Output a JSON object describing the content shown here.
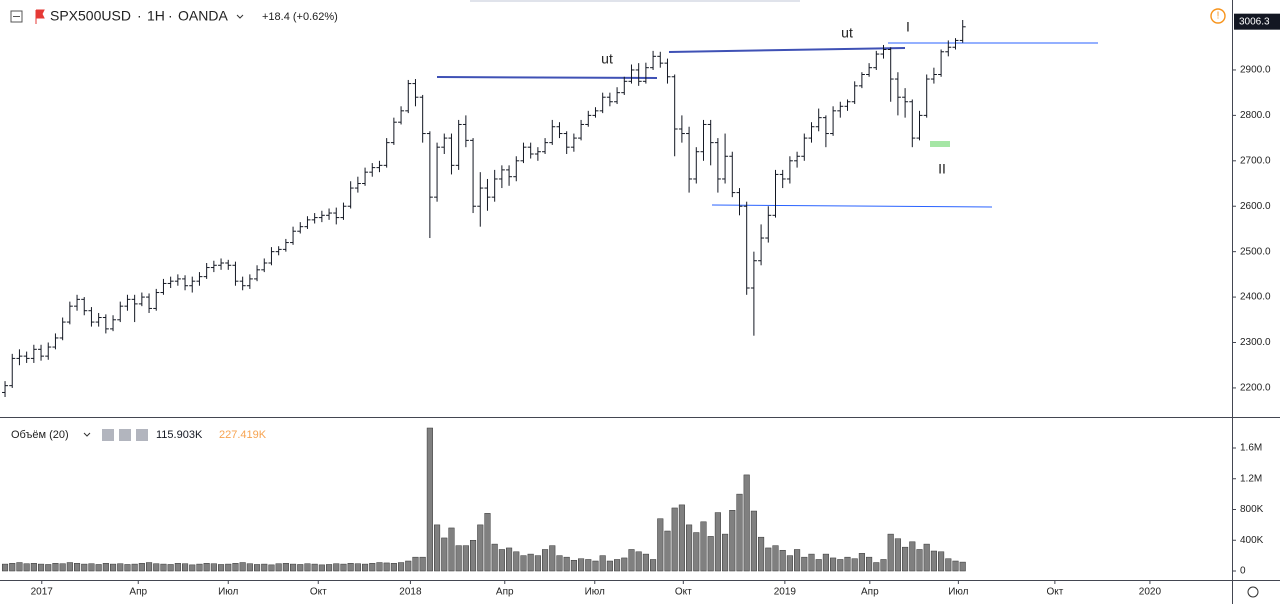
{
  "chart_data": [
    {
      "type": "ohlc",
      "title": "SPX500USD",
      "interval": "1H",
      "exchange": "OANDA",
      "change": "+18.4 (+0.62%)",
      "last": 3006.3,
      "annotations": [
        "ut",
        "ut",
        "I",
        "II"
      ],
      "open": [
        2190,
        2205,
        2265,
        2270,
        2265,
        2285,
        2270,
        2290,
        2310,
        2345,
        2380,
        2395,
        2370,
        2345,
        2355,
        2330,
        2350,
        2380,
        2395,
        2385,
        2400,
        2375,
        2410,
        2430,
        2435,
        2440,
        2425,
        2435,
        2445,
        2465,
        2470,
        2475,
        2470,
        2435,
        2425,
        2440,
        2460,
        2475,
        2500,
        2505,
        2520,
        2545,
        2555,
        2570,
        2575,
        2580,
        2585,
        2575,
        2600,
        2640,
        2650,
        2675,
        2685,
        2690,
        2740,
        2785,
        2810,
        2870,
        2840,
        2760,
        2620,
        2730,
        2750,
        2690,
        2780,
        2745,
        2600,
        2640,
        2620,
        2660,
        2680,
        2665,
        2700,
        2730,
        2715,
        2720,
        2740,
        2775,
        2760,
        2730,
        2750,
        2780,
        2800,
        2810,
        2840,
        2830,
        2850,
        2875,
        2900,
        2875,
        2905,
        2930,
        2915,
        2885,
        2770,
        2760,
        2660,
        2720,
        2780,
        2740,
        2660,
        2710,
        2630,
        2600,
        2420,
        2480,
        2530,
        2580,
        2670,
        2660,
        2700,
        2710,
        2750,
        2775,
        2795,
        2760,
        2810,
        2820,
        2830,
        2865,
        2890,
        2905,
        2935,
        2945,
        2880,
        2840,
        2830,
        2750,
        2800,
        2880,
        2890,
        2940,
        2950,
        2965
      ],
      "high": [
        2215,
        2275,
        2285,
        2280,
        2295,
        2295,
        2300,
        2320,
        2355,
        2390,
        2405,
        2400,
        2378,
        2365,
        2362,
        2360,
        2390,
        2405,
        2405,
        2410,
        2408,
        2418,
        2440,
        2445,
        2450,
        2448,
        2445,
        2455,
        2475,
        2480,
        2485,
        2482,
        2478,
        2445,
        2450,
        2470,
        2485,
        2510,
        2512,
        2528,
        2555,
        2565,
        2578,
        2585,
        2590,
        2595,
        2597,
        2608,
        2655,
        2665,
        2685,
        2695,
        2700,
        2750,
        2795,
        2820,
        2878,
        2880,
        2845,
        2765,
        2740,
        2760,
        2760,
        2790,
        2800,
        2750,
        2675,
        2660,
        2680,
        2690,
        2690,
        2710,
        2740,
        2740,
        2730,
        2750,
        2790,
        2785,
        2765,
        2760,
        2790,
        2810,
        2818,
        2850,
        2850,
        2862,
        2885,
        2912,
        2915,
        2916,
        2942,
        2940,
        2925,
        2890,
        2800,
        2775,
        2730,
        2790,
        2790,
        2750,
        2760,
        2720,
        2640,
        2610,
        2500,
        2560,
        2600,
        2680,
        2680,
        2710,
        2720,
        2760,
        2785,
        2815,
        2800,
        2820,
        2830,
        2835,
        2875,
        2895,
        2915,
        2942,
        2955,
        2950,
        2895,
        2860,
        2835,
        2810,
        2890,
        2905,
        2945,
        2965,
        2970,
        3010
      ],
      "low": [
        2180,
        2200,
        2250,
        2255,
        2255,
        2260,
        2262,
        2285,
        2305,
        2340,
        2370,
        2360,
        2335,
        2335,
        2320,
        2325,
        2345,
        2370,
        2345,
        2380,
        2365,
        2370,
        2405,
        2420,
        2425,
        2415,
        2410,
        2425,
        2440,
        2455,
        2460,
        2460,
        2425,
        2415,
        2418,
        2435,
        2455,
        2470,
        2492,
        2500,
        2515,
        2540,
        2550,
        2562,
        2565,
        2570,
        2560,
        2570,
        2595,
        2630,
        2645,
        2665,
        2675,
        2685,
        2735,
        2780,
        2805,
        2820,
        2740,
        2530,
        2610,
        2715,
        2670,
        2680,
        2730,
        2585,
        2555,
        2590,
        2610,
        2640,
        2645,
        2655,
        2695,
        2705,
        2700,
        2715,
        2735,
        2750,
        2715,
        2720,
        2745,
        2775,
        2795,
        2805,
        2820,
        2825,
        2845,
        2870,
        2865,
        2870,
        2900,
        2905,
        2870,
        2710,
        2740,
        2630,
        2650,
        2700,
        2690,
        2630,
        2650,
        2620,
        2580,
        2405,
        2315,
        2470,
        2520,
        2575,
        2640,
        2650,
        2685,
        2700,
        2740,
        2765,
        2730,
        2755,
        2795,
        2810,
        2825,
        2860,
        2885,
        2900,
        2925,
        2830,
        2800,
        2795,
        2730,
        2745,
        2795,
        2870,
        2885,
        2930,
        2945,
        2960
      ],
      "close": [
        2205,
        2265,
        2270,
        2265,
        2285,
        2270,
        2290,
        2310,
        2345,
        2380,
        2395,
        2370,
        2345,
        2355,
        2330,
        2350,
        2380,
        2395,
        2385,
        2400,
        2375,
        2410,
        2430,
        2435,
        2440,
        2425,
        2435,
        2445,
        2465,
        2470,
        2475,
        2470,
        2435,
        2425,
        2440,
        2460,
        2475,
        2500,
        2505,
        2520,
        2545,
        2555,
        2570,
        2575,
        2580,
        2585,
        2575,
        2600,
        2640,
        2650,
        2675,
        2685,
        2690,
        2740,
        2785,
        2810,
        2870,
        2840,
        2760,
        2620,
        2730,
        2750,
        2690,
        2780,
        2745,
        2600,
        2640,
        2620,
        2660,
        2680,
        2665,
        2700,
        2730,
        2715,
        2720,
        2740,
        2775,
        2760,
        2730,
        2750,
        2780,
        2800,
        2810,
        2840,
        2830,
        2850,
        2875,
        2900,
        2875,
        2905,
        2930,
        2915,
        2885,
        2770,
        2760,
        2660,
        2720,
        2780,
        2740,
        2660,
        2710,
        2630,
        2600,
        2420,
        2480,
        2530,
        2580,
        2670,
        2660,
        2700,
        2710,
        2750,
        2775,
        2795,
        2760,
        2810,
        2820,
        2830,
        2865,
        2890,
        2905,
        2935,
        2945,
        2880,
        2840,
        2830,
        2750,
        2800,
        2880,
        2890,
        2940,
        2950,
        2965,
        2995
      ],
      "xlim": [
        -0.7,
        170.4
      ],
      "xticks": [
        {
          "value": 5.1,
          "label": "2017"
        },
        {
          "value": 18.5,
          "label": "Апр"
        },
        {
          "value": 31,
          "label": "Июл"
        },
        {
          "value": 43.5,
          "label": "Окт"
        },
        {
          "value": 56.3,
          "label": "2018"
        },
        {
          "value": 69.4,
          "label": "Апр"
        },
        {
          "value": 81.9,
          "label": "Июл"
        },
        {
          "value": 94.2,
          "label": "Окт"
        },
        {
          "value": 108.3,
          "label": "2019"
        },
        {
          "value": 120.1,
          "label": "Апр"
        },
        {
          "value": 132.4,
          "label": "Июл"
        },
        {
          "value": 145.8,
          "label": "Окт"
        },
        {
          "value": 159,
          "label": "2020"
        }
      ],
      "ylim": [
        2136,
        3054
      ],
      "yticks": [
        {
          "value": 2200,
          "label": "2200.0"
        },
        {
          "value": 2300,
          "label": "2300.0"
        },
        {
          "value": 2400,
          "label": "2400.0"
        },
        {
          "value": 2500,
          "label": "2500.0"
        },
        {
          "value": 2600,
          "label": "2600.0"
        },
        {
          "value": 2700,
          "label": "2700.0"
        },
        {
          "value": 2800,
          "label": "2800.0"
        },
        {
          "value": 2900,
          "label": "2900.0"
        }
      ],
      "color": "#131722",
      "grid": false
    },
    {
      "type": "bar",
      "title": "Объём (20)",
      "legend_values": [
        {
          "value": 115903,
          "label": "115.903K",
          "color": "#131722"
        },
        {
          "value": 227419,
          "label": "227.419K",
          "color": "#f7a350"
        }
      ],
      "values": [
        90000,
        100000,
        110000,
        95000,
        100000,
        90000,
        85000,
        100000,
        95000,
        110000,
        100000,
        90000,
        95000,
        85000,
        100000,
        90000,
        95000,
        85000,
        90000,
        100000,
        110000,
        95000,
        90000,
        85000,
        100000,
        95000,
        80000,
        90000,
        100000,
        95000,
        85000,
        90000,
        100000,
        110000,
        95000,
        85000,
        90000,
        80000,
        95000,
        100000,
        90000,
        85000,
        95000,
        90000,
        80000,
        85000,
        95000,
        90000,
        100000,
        95000,
        90000,
        100000,
        110000,
        105000,
        100000,
        110000,
        130000,
        180000,
        180000,
        1860000,
        600000,
        430000,
        560000,
        330000,
        330000,
        400000,
        600000,
        750000,
        350000,
        280000,
        300000,
        250000,
        200000,
        220000,
        200000,
        280000,
        330000,
        200000,
        180000,
        140000,
        160000,
        150000,
        130000,
        200000,
        130000,
        150000,
        170000,
        280000,
        250000,
        220000,
        150000,
        680000,
        520000,
        820000,
        860000,
        600000,
        500000,
        640000,
        450000,
        760000,
        480000,
        790000,
        1000000,
        1250000,
        780000,
        440000,
        300000,
        330000,
        270000,
        200000,
        280000,
        180000,
        220000,
        150000,
        220000,
        170000,
        150000,
        180000,
        160000,
        230000,
        180000,
        110000,
        150000,
        480000,
        420000,
        310000,
        380000,
        280000,
        350000,
        260000,
        250000,
        160000,
        130000,
        115903
      ],
      "ylim": [
        -117000,
        1964000
      ],
      "yticks": [
        0,
        {
          "value": 400000,
          "label": "400K"
        },
        {
          "value": 800000,
          "label": "800K"
        },
        {
          "value": 1200000,
          "label": "1.2M"
        },
        {
          "value": 1600000,
          "label": "1.6M"
        }
      ],
      "color": "#808080"
    }
  ]
}
